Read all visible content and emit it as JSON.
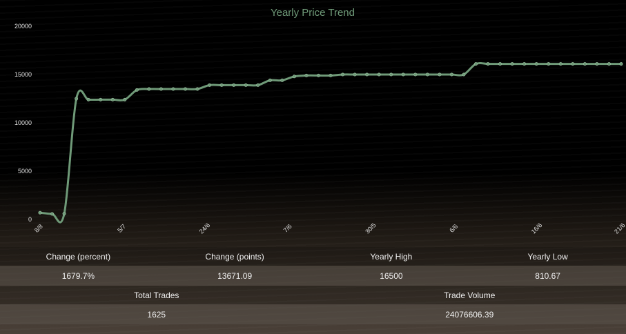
{
  "chart_data": {
    "type": "line",
    "title": "Yearly Price Trend",
    "ylim": [
      0,
      20000
    ],
    "y_ticks": [
      "0",
      "5000",
      "10000",
      "15000",
      "20000"
    ],
    "x_tick_labels": [
      "8/8",
      "5/7",
      "24/6",
      "7/6",
      "30/5",
      "6/6",
      "16/6",
      "21/6"
    ],
    "grid": false,
    "legend": "none",
    "line_color": "#6f9a78",
    "series": [
      {
        "values": [
          700,
          570,
          600,
          12500,
          12400,
          12400,
          12400,
          12400,
          13400,
          13500,
          13500,
          13500,
          13500,
          13500,
          13900,
          13900,
          13900,
          13900,
          13900,
          14400,
          14400,
          14800,
          14900,
          14900,
          14900,
          15000,
          15000,
          15000,
          15000,
          15000,
          15000,
          15000,
          15000,
          15000,
          15000,
          15000,
          16100,
          16100,
          16100,
          16100,
          16100,
          16100,
          16100,
          16100,
          16100,
          16100,
          16100,
          16100,
          16100
        ]
      }
    ]
  },
  "stats": {
    "row1_labels": [
      "Change (percent)",
      "Change (points)",
      "Yearly High",
      "Yearly Low"
    ],
    "row1_values": [
      "1679.7%",
      "13671.09",
      "16500",
      "810.67"
    ],
    "row2_labels": [
      "Total Trades",
      "Trade Volume"
    ],
    "row2_values": [
      "1625",
      "24076606.39"
    ]
  }
}
